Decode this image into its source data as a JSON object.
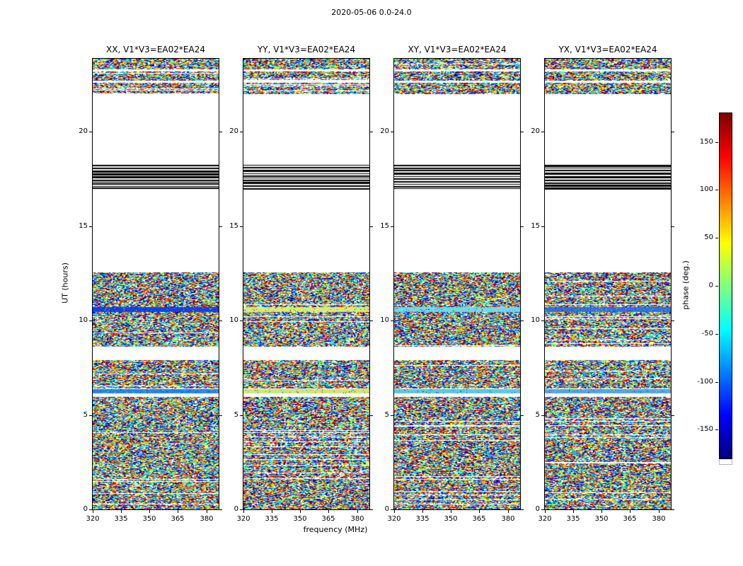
{
  "figure": {
    "title": "2020-05-06 0.0-24.0"
  },
  "panels": [
    {
      "title": "XX, V1*V3=EA02*EA24"
    },
    {
      "title": "YY, V1*V3=EA02*EA24"
    },
    {
      "title": "XY, V1*V3=EA02*EA24"
    },
    {
      "title": "YX, V1*V3=EA02*EA24"
    }
  ],
  "axes": {
    "xlabel": "frequency (MHz)",
    "ylabel": "UT (hours)",
    "xlim": [
      320,
      386.5
    ],
    "ylim": [
      0,
      23.86
    ],
    "xticks": [
      320,
      335,
      350,
      365,
      380
    ],
    "yticks": [
      0,
      5,
      10,
      15,
      20
    ]
  },
  "colorbar": {
    "label": "phase (deg.)",
    "ticks": [
      150,
      100,
      50,
      0,
      -50,
      -100,
      -150
    ],
    "vmin": -180,
    "vmax": 180,
    "colormap": "jet"
  },
  "chart_data": {
    "type": "heatmap",
    "title": "2020-05-06 0.0-24.0",
    "xlabel": "frequency (MHz)",
    "ylabel": "UT (hours)",
    "value_label": "phase (deg.)",
    "x_range_mhz": [
      320,
      386.5
    ],
    "y_range_hours": [
      0,
      23.86
    ],
    "value_range_deg": [
      -180,
      180
    ],
    "colormap": "jet",
    "description": "Four polarization panels (XX, YY, XY, YX) of baseline V1*V3=EA02*EA24 showing visibility phase noise versus frequency and UT; data present only in certain UT bands, blank (white) elsewhere, with solid black flagged rows near UT 17-18.",
    "bands": [
      {
        "y0": 0.0,
        "y1": 5.95,
        "kind": "noise"
      },
      {
        "y0": 6.15,
        "y1": 6.35,
        "kind": "bright",
        "colors": [
          "#1c86ee",
          "#cde96e",
          "#5ac8e8",
          "#4aa8e8"
        ]
      },
      {
        "y0": 6.4,
        "y1": 7.9,
        "kind": "noise"
      },
      {
        "y0": 8.6,
        "y1": 12.55,
        "kind": "noise"
      },
      {
        "y0": 10.45,
        "y1": 10.7,
        "kind": "bright",
        "colors": [
          "#1040ee",
          "#d8ef70",
          "#70d8ee",
          "#2f6fe8"
        ]
      },
      {
        "y0": 16.9,
        "y1": 18.25,
        "kind": "black_stripes"
      },
      {
        "y0": 22.0,
        "y1": 22.6,
        "kind": "noise"
      },
      {
        "y0": 22.7,
        "y1": 23.2,
        "kind": "noise"
      },
      {
        "y0": 23.3,
        "y1": 23.86,
        "kind": "noise"
      }
    ]
  }
}
